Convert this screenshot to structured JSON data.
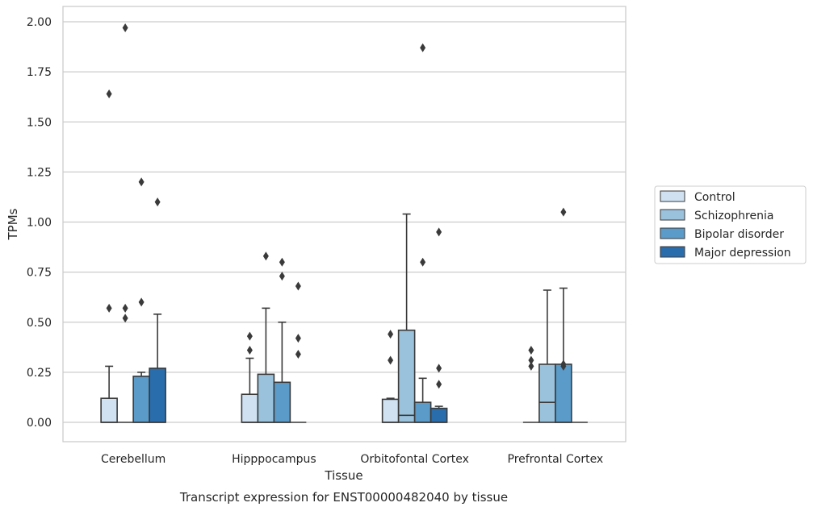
{
  "chart_data": {
    "type": "box",
    "title": "",
    "caption": "Transcript expression for ENST00000482040 by tissue",
    "xlabel": "Tissue",
    "ylabel": "TPMs",
    "ylim": [
      -0.1,
      2.07
    ],
    "yticks": [
      "0.00",
      "0.25",
      "0.50",
      "0.75",
      "1.00",
      "1.25",
      "1.50",
      "1.75",
      "2.00"
    ],
    "ytick_values": [
      0,
      0.25,
      0.5,
      0.75,
      1.0,
      1.25,
      1.5,
      1.75,
      2.0
    ],
    "grid": true,
    "legend_position": "right",
    "categories": [
      "Cerebellum",
      "Hipppocampus",
      "Orbitofontal Cortex",
      "Prefrontal Cortex"
    ],
    "series": [
      {
        "name": "Control",
        "color": "#d0e1f2",
        "boxes": [
          {
            "q1": 0,
            "median": 0,
            "q3": 0.12,
            "whisker_low": 0,
            "whisker_high": 0.28,
            "outliers": [
              0.57,
              1.64
            ]
          },
          {
            "q1": 0,
            "median": 0,
            "q3": 0.14,
            "whisker_low": 0,
            "whisker_high": 0.32,
            "outliers": [
              0.36,
              0.43
            ]
          },
          {
            "q1": 0,
            "median": 0,
            "q3": 0.115,
            "whisker_low": 0,
            "whisker_high": 0.12,
            "outliers": [
              0.31,
              0.44
            ]
          },
          {
            "q1": 0,
            "median": 0,
            "q3": 0,
            "whisker_low": 0,
            "whisker_high": 0,
            "outliers": [
              0.28,
              0.31,
              0.36
            ]
          }
        ]
      },
      {
        "name": "Schizophrenia",
        "color": "#9ac2dc",
        "boxes": [
          {
            "q1": 0,
            "median": 0,
            "q3": 0,
            "whisker_low": 0,
            "whisker_high": 0,
            "outliers": [
              0.52,
              0.57,
              1.97
            ]
          },
          {
            "q1": 0,
            "median": 0,
            "q3": 0.24,
            "whisker_low": 0,
            "whisker_high": 0.57,
            "outliers": [
              0.83
            ]
          },
          {
            "q1": 0,
            "median": 0.035,
            "q3": 0.46,
            "whisker_low": 0,
            "whisker_high": 1.04,
            "outliers": []
          },
          {
            "q1": 0,
            "median": 0.1,
            "q3": 0.29,
            "whisker_low": 0,
            "whisker_high": 0.66,
            "outliers": []
          }
        ]
      },
      {
        "name": "Bipolar disorder",
        "color": "#5a9bc9",
        "boxes": [
          {
            "q1": 0,
            "median": 0,
            "q3": 0.23,
            "whisker_low": 0,
            "whisker_high": 0.25,
            "outliers": [
              0.6,
              1.2
            ]
          },
          {
            "q1": 0,
            "median": 0,
            "q3": 0.2,
            "whisker_low": 0,
            "whisker_high": 0.5,
            "outliers": [
              0.73,
              0.8
            ]
          },
          {
            "q1": 0,
            "median": 0,
            "q3": 0.1,
            "whisker_low": 0,
            "whisker_high": 0.22,
            "outliers": [
              0.8,
              1.87
            ]
          },
          {
            "q1": 0,
            "median": 0,
            "q3": 0.29,
            "whisker_low": 0,
            "whisker_high": 0.67,
            "outliers": [
              0.28,
              0.29,
              1.05
            ]
          }
        ]
      },
      {
        "name": "Major depression",
        "color": "#2a6dad",
        "boxes": [
          {
            "q1": 0,
            "median": 0,
            "q3": 0.27,
            "whisker_low": 0,
            "whisker_high": 0.54,
            "outliers": [
              1.1
            ]
          },
          {
            "q1": 0,
            "median": 0,
            "q3": 0,
            "whisker_low": 0,
            "whisker_high": 0,
            "outliers": [
              0.34,
              0.42,
              0.68
            ]
          },
          {
            "q1": 0,
            "median": 0,
            "q3": 0.07,
            "whisker_low": 0,
            "whisker_high": 0.08,
            "outliers": [
              0.19,
              0.27,
              0.95
            ]
          },
          {
            "q1": 0,
            "median": 0,
            "q3": 0,
            "whisker_low": 0,
            "whisker_high": 0,
            "outliers": []
          }
        ]
      }
    ]
  }
}
